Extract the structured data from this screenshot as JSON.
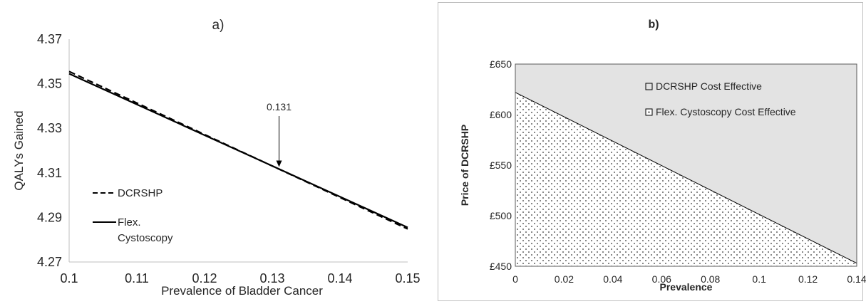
{
  "chart_data": [
    {
      "type": "line",
      "title": "a)",
      "xlabel": "Prevalence of Bladder Cancer",
      "ylabel": "QALYs Gained",
      "xlim": [
        0.1,
        0.15
      ],
      "ylim": [
        4.27,
        4.37
      ],
      "x_ticks": [
        "0.1",
        "0.11",
        "0.12",
        "0.13",
        "0.14",
        "0.15"
      ],
      "y_ticks": [
        "4.37",
        "4.35",
        "4.33",
        "4.31",
        "4.29",
        "4.27"
      ],
      "grid": false,
      "legend_position": "bottom-left",
      "series": [
        {
          "name": "DCRSHP",
          "style": "dashed",
          "color": "#000000",
          "x": [
            0.1,
            0.15
          ],
          "y": [
            4.3555,
            4.2848
          ]
        },
        {
          "name": "Flex. Cystoscopy",
          "style": "solid",
          "color": "#000000",
          "x": [
            0.1,
            0.15
          ],
          "y": [
            4.3545,
            4.2855
          ]
        }
      ],
      "annotations": [
        {
          "text": "0.131",
          "x": 0.131,
          "y": 4.312
        }
      ]
    },
    {
      "type": "area",
      "title": "b)",
      "xlabel": "Prevalence",
      "ylabel": "Price of DCRSHP",
      "xlim": [
        0,
        0.14
      ],
      "ylim": [
        450,
        650
      ],
      "x_ticks": [
        "0",
        "0.02",
        "0.04",
        "0.06",
        "0.08",
        "0.1",
        "0.12",
        "0.14"
      ],
      "y_ticks": [
        "£650",
        "£600",
        "£550",
        "£500",
        "£450"
      ],
      "grid": false,
      "legend_position": "top-right",
      "boundary": {
        "x": [
          0,
          0.14
        ],
        "y": [
          622,
          453
        ]
      },
      "series": [
        {
          "name": "DCRSHP Cost Effective",
          "region": "above boundary",
          "fill": "#e3e3e3"
        },
        {
          "name": "Flex. Cystoscopy Cost Effective",
          "region": "below boundary",
          "fill": "dotted"
        }
      ]
    }
  ]
}
